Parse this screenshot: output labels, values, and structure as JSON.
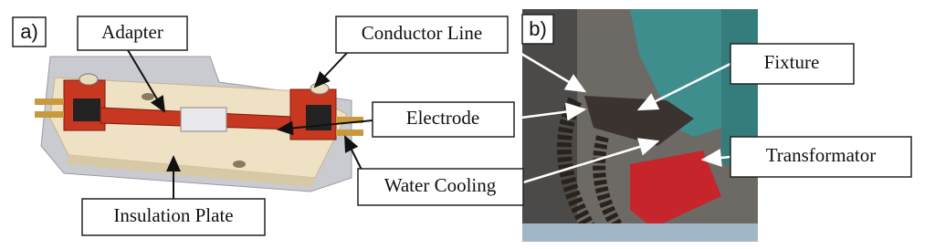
{
  "panel_a": {
    "label": "a)",
    "callouts": {
      "adapter": "Adapter",
      "conductor_line": "Conductor Line",
      "electrode": "Electrode",
      "water_cooling": "Water Cooling",
      "insulation_plate": "Insulation Plate"
    }
  },
  "panel_b": {
    "label": "b)",
    "callouts": {
      "fixture": "Fixture",
      "transformator": "Transformator"
    }
  }
}
